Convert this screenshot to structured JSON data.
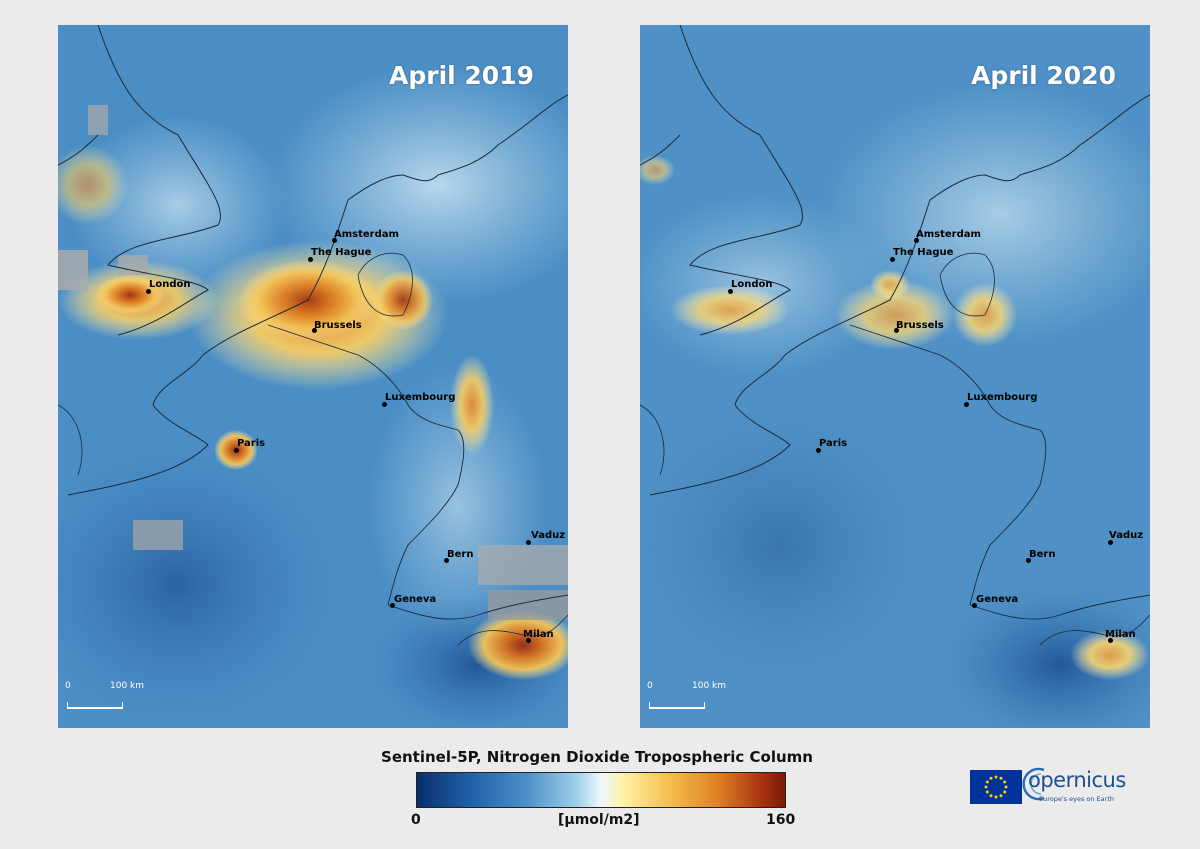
{
  "panels": [
    {
      "id": "2019",
      "title": "April 2019",
      "cities": [
        {
          "name": "Amsterdam"
        },
        {
          "name": "The Hague"
        },
        {
          "name": "London"
        },
        {
          "name": "Brussels"
        },
        {
          "name": "Luxembourg"
        },
        {
          "name": "Paris"
        },
        {
          "name": "Vaduz"
        },
        {
          "name": "Bern"
        },
        {
          "name": "Geneva"
        },
        {
          "name": "Milan"
        }
      ],
      "scale": {
        "zero": "0",
        "distance": "100 km"
      }
    },
    {
      "id": "2020",
      "title": "April 2020",
      "cities": [
        {
          "name": "Amsterdam"
        },
        {
          "name": "The Hague"
        },
        {
          "name": "London"
        },
        {
          "name": "Brussels"
        },
        {
          "name": "Luxembourg"
        },
        {
          "name": "Paris"
        },
        {
          "name": "Vaduz"
        },
        {
          "name": "Bern"
        },
        {
          "name": "Geneva"
        },
        {
          "name": "Milan"
        }
      ],
      "scale": {
        "zero": "0",
        "distance": "100 km"
      }
    }
  ],
  "legend": {
    "title": "Sentinel-5P, Nitrogen Dioxide Tropospheric Column",
    "min": "0",
    "unit": "[µmol/m2]",
    "max": "160",
    "colors": [
      "#0a2f6b",
      "#4d91c9",
      "#eef8fb",
      "#f5c150",
      "#7a1a08"
    ]
  },
  "logos": {
    "eu_flag": "eu-flag",
    "copernicus_word": "opernicus",
    "copernicus_tagline": "Europe's eyes on Earth"
  }
}
